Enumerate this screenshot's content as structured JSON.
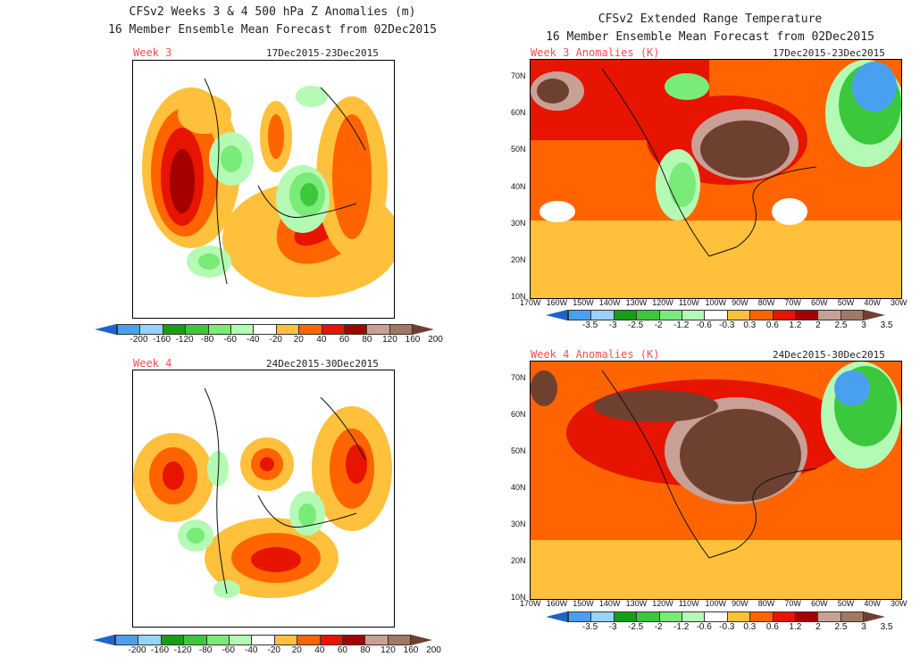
{
  "left": {
    "title_line1": "CFSv2 Weeks 3 & 4 500 hPa Z Anomalies (m)",
    "title_line2": "16 Member Ensemble Mean Forecast from 02Dec2015",
    "week3": {
      "label": "Week 3",
      "dates": "17Dec2015-23Dec2015"
    },
    "week4": {
      "label": "Week 4",
      "dates": "24Dec2015-30Dec2015"
    },
    "colorbar_labels": [
      "-200",
      "-160",
      "-120",
      "-80",
      "-60",
      "-40",
      "-20",
      "20",
      "40",
      "60",
      "80",
      "120",
      "160",
      "200"
    ]
  },
  "right": {
    "title_line1": "CFSv2 Extended Range Temperature",
    "title_line2": "16 Member Ensemble Mean Forecast from 02Dec2015",
    "week3": {
      "label": "Week 3 Anomalies (K)",
      "dates": "17Dec2015-23Dec2015"
    },
    "week4": {
      "label": "Week 4 Anomalies (K)",
      "dates": "24Dec2015-30Dec2015"
    },
    "lat_labels": [
      "70N",
      "60N",
      "50N",
      "40N",
      "30N",
      "20N",
      "10N"
    ],
    "lon_labels": [
      "170W",
      "160W",
      "150W",
      "140W",
      "130W",
      "120W",
      "110W",
      "100W",
      "90W",
      "80W",
      "70W",
      "60W",
      "50W",
      "40W",
      "30W"
    ],
    "colorbar_labels": [
      "-3.5",
      "-3",
      "-2.5",
      "-2",
      "-1.2",
      "-0.6",
      "-0.3",
      "0.3",
      "0.6",
      "1.2",
      "2",
      "2.5",
      "3",
      "3.5"
    ]
  },
  "colors": {
    "low_end": "#1e64c8",
    "bins": [
      "#4aa0f0",
      "#96d2fa",
      "#14a014",
      "#3cc83c",
      "#78eb78",
      "#b4fab4",
      "#ffffff",
      "#ffc03c",
      "#ff6400",
      "#e61400",
      "#a50000",
      "#c8a096",
      "#a07864"
    ],
    "high_end": "#6e4030"
  }
}
